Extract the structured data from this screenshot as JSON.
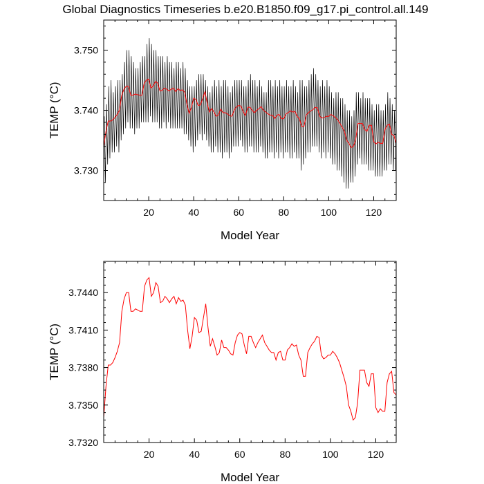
{
  "title": "Global Diagnostics Timeseries b.e20.B1850.f09_g17.pi_control.all.149",
  "colors": {
    "monthly": "#000000",
    "annual": "#ff0000"
  },
  "chart_data": [
    {
      "type": "line",
      "xlabel": "Model Year",
      "ylabel": "TEMP (°C)",
      "xlim": [
        0,
        130
      ],
      "ylim": [
        3.725,
        3.755
      ],
      "xticks": [
        20,
        40,
        60,
        80,
        100,
        120
      ],
      "xtick_labels": [
        "20",
        "40",
        "60",
        "80",
        "100",
        "120"
      ],
      "yticks": [
        3.73,
        3.74,
        3.75
      ],
      "ytick_labels": [
        "3.730",
        "3.740",
        "3.750"
      ],
      "series": [
        {
          "role": "monthly",
          "color": "#000000",
          "x": [
            0.5,
            1.5,
            2.5,
            3.5,
            4.5,
            5.5,
            6.5,
            7.5,
            8.5,
            9.5,
            10.5,
            11.5,
            12.5,
            13.5,
            14.5,
            15.5,
            16.5,
            17.5,
            18.5,
            19.5,
            20.5,
            21.5,
            22.5,
            23.5,
            24.5,
            25.5,
            26.5,
            27.5,
            28.5,
            29.5,
            30.5,
            31.5,
            32.5,
            33.5,
            34.5,
            35.5,
            36.5,
            37.5,
            38.5,
            39.5,
            40.5,
            41.5,
            42.5,
            43.5,
            44.5,
            45.5,
            46.5,
            47.5,
            48.5,
            49.5,
            50.5,
            51.5,
            52.5,
            53.5,
            54.5,
            55.5,
            56.5,
            57.5,
            58.5,
            59.5,
            60.5,
            61.5,
            62.5,
            63.5,
            64.5,
            65.5,
            66.5,
            67.5,
            68.5,
            69.5,
            70.5,
            71.5,
            72.5,
            73.5,
            74.5,
            75.5,
            76.5,
            77.5,
            78.5,
            79.5,
            80.5,
            81.5,
            82.5,
            83.5,
            84.5,
            85.5,
            86.5,
            87.5,
            88.5,
            89.5,
            90.5,
            91.5,
            92.5,
            93.5,
            94.5,
            95.5,
            96.5,
            97.5,
            98.5,
            99.5,
            100.5,
            101.5,
            102.5,
            103.5,
            104.5,
            105.5,
            106.5,
            107.5,
            108.5,
            109.5,
            110.5,
            111.5,
            112.5,
            113.5,
            114.5,
            115.5,
            116.5,
            117.5,
            118.5,
            119.5,
            120.5,
            121.5,
            122.5,
            123.5,
            124.5,
            125.5,
            126.5,
            127.5,
            128.5,
            129.5
          ],
          "ymax": [
            3.739,
            3.741,
            3.744,
            3.745,
            3.743,
            3.744,
            3.745,
            3.745,
            3.746,
            3.748,
            3.75,
            3.75,
            3.749,
            3.748,
            3.747,
            3.747,
            3.748,
            3.749,
            3.749,
            3.751,
            3.752,
            3.751,
            3.75,
            3.75,
            3.749,
            3.749,
            3.749,
            3.748,
            3.749,
            3.748,
            3.748,
            3.747,
            3.748,
            3.748,
            3.747,
            3.748,
            3.747,
            3.745,
            3.744,
            3.744,
            3.744,
            3.745,
            3.746,
            3.746,
            3.746,
            3.745,
            3.744,
            3.743,
            3.744,
            3.745,
            3.744,
            3.745,
            3.744,
            3.745,
            3.745,
            3.744,
            3.743,
            3.744,
            3.745,
            3.745,
            3.745,
            3.745,
            3.744,
            3.744,
            3.745,
            3.746,
            3.745,
            3.745,
            3.744,
            3.745,
            3.744,
            3.743,
            3.743,
            3.745,
            3.745,
            3.744,
            3.745,
            3.744,
            3.745,
            3.744,
            3.744,
            3.745,
            3.744,
            3.744,
            3.745,
            3.744,
            3.743,
            3.745,
            3.745,
            3.744,
            3.744,
            3.745,
            3.746,
            3.747,
            3.746,
            3.745,
            3.744,
            3.745,
            3.744,
            3.745,
            3.744,
            3.743,
            3.742,
            3.743,
            3.743,
            3.742,
            3.742,
            3.741,
            3.74,
            3.74,
            3.739,
            3.74,
            3.743,
            3.743,
            3.742,
            3.743,
            3.742,
            3.742,
            3.742,
            3.741,
            3.74,
            3.741,
            3.741,
            3.74,
            3.74,
            3.741,
            3.743,
            3.742,
            3.741,
            3.74
          ],
          "ymin": [
            3.728,
            3.731,
            3.732,
            3.733,
            3.733,
            3.734,
            3.733,
            3.735,
            3.736,
            3.737,
            3.738,
            3.737,
            3.737,
            3.736,
            3.737,
            3.737,
            3.738,
            3.738,
            3.738,
            3.738,
            3.739,
            3.738,
            3.738,
            3.738,
            3.737,
            3.737,
            3.738,
            3.737,
            3.738,
            3.737,
            3.737,
            3.737,
            3.737,
            3.737,
            3.737,
            3.736,
            3.736,
            3.735,
            3.734,
            3.733,
            3.734,
            3.735,
            3.736,
            3.735,
            3.736,
            3.735,
            3.734,
            3.733,
            3.733,
            3.734,
            3.733,
            3.733,
            3.732,
            3.733,
            3.733,
            3.732,
            3.733,
            3.734,
            3.734,
            3.734,
            3.735,
            3.734,
            3.733,
            3.733,
            3.734,
            3.734,
            3.733,
            3.733,
            3.733,
            3.734,
            3.733,
            3.732,
            3.732,
            3.733,
            3.733,
            3.732,
            3.733,
            3.732,
            3.733,
            3.732,
            3.733,
            3.733,
            3.732,
            3.732,
            3.733,
            3.732,
            3.732,
            3.73,
            3.731,
            3.732,
            3.733,
            3.733,
            3.734,
            3.734,
            3.734,
            3.733,
            3.732,
            3.733,
            3.732,
            3.733,
            3.732,
            3.731,
            3.731,
            3.73,
            3.73,
            3.729,
            3.728,
            3.727,
            3.727,
            3.728,
            3.728,
            3.729,
            3.731,
            3.732,
            3.731,
            3.731,
            3.731,
            3.73,
            3.73,
            3.73,
            3.729,
            3.729,
            3.729,
            3.729,
            3.73,
            3.73,
            3.731,
            3.731,
            3.73,
            3.73
          ]
        },
        {
          "role": "annual",
          "color": "#ff0000",
          "x": [
            0,
            1,
            2,
            3,
            4,
            5,
            6,
            7,
            8,
            9,
            10,
            11,
            12,
            13,
            14,
            15,
            16,
            17,
            18,
            19,
            20,
            21,
            22,
            23,
            24,
            25,
            26,
            27,
            28,
            29,
            30,
            31,
            32,
            33,
            34,
            35,
            36,
            37,
            38,
            39,
            40,
            41,
            42,
            43,
            44,
            45,
            46,
            47,
            48,
            49,
            50,
            51,
            52,
            53,
            54,
            55,
            56,
            57,
            58,
            59,
            60,
            61,
            62,
            63,
            64,
            65,
            66,
            67,
            68,
            69,
            70,
            71,
            72,
            73,
            74,
            75,
            76,
            77,
            78,
            79,
            80,
            81,
            82,
            83,
            84,
            85,
            86,
            87,
            88,
            89,
            90,
            91,
            92,
            93,
            94,
            95,
            96,
            97,
            98,
            99,
            100,
            101,
            102,
            103,
            104,
            105,
            106,
            107,
            108,
            109,
            110,
            111,
            112,
            113,
            114,
            115,
            116,
            117,
            118,
            119,
            120,
            121,
            122,
            123,
            124,
            125,
            126,
            127,
            128,
            129,
            130
          ],
          "values": [
            3.734,
            3.7365,
            3.7382,
            3.7382,
            3.7384,
            3.7388,
            3.7393,
            3.74,
            3.7425,
            3.7435,
            3.744,
            3.744,
            3.7425,
            3.7425,
            3.7427,
            3.7426,
            3.7425,
            3.7425,
            3.7445,
            3.745,
            3.7452,
            3.7437,
            3.744,
            3.7448,
            3.7445,
            3.7432,
            3.7433,
            3.7437,
            3.7435,
            3.7432,
            3.7435,
            3.7437,
            3.7431,
            3.7436,
            3.7433,
            3.7434,
            3.743,
            3.741,
            3.7395,
            3.7405,
            3.742,
            3.7418,
            3.7408,
            3.7409,
            3.742,
            3.7431,
            3.7412,
            3.7397,
            3.7403,
            3.7397,
            3.739,
            3.7392,
            3.7402,
            3.7396,
            3.7396,
            3.7394,
            3.7391,
            3.739,
            3.74,
            3.7406,
            3.7408,
            3.7407,
            3.7398,
            3.7391,
            3.7405,
            3.7405,
            3.74,
            3.7396,
            3.74,
            3.7403,
            3.7406,
            3.74,
            3.7397,
            3.7394,
            3.7392,
            3.7392,
            3.7386,
            3.7392,
            3.7393,
            3.7386,
            3.7386,
            3.7394,
            3.7396,
            3.7399,
            3.7397,
            3.7398,
            3.739,
            3.7386,
            3.7373,
            3.7373,
            3.7392,
            3.7396,
            3.7399,
            3.7401,
            3.7405,
            3.7404,
            3.739,
            3.7387,
            3.7388,
            3.739,
            3.739,
            3.7393,
            3.7391,
            3.7388,
            3.7384,
            3.7378,
            3.7372,
            3.7365,
            3.735,
            3.7345,
            3.7338,
            3.734,
            3.7352,
            3.7378,
            3.7378,
            3.7378,
            3.7368,
            3.7365,
            3.7375,
            3.7375,
            3.7348,
            3.7344,
            3.7347,
            3.7345,
            3.7345,
            3.7368,
            3.7375,
            3.7377,
            3.736,
            3.7358,
            3.7345
          ]
        }
      ]
    },
    {
      "type": "line",
      "xlabel": "Model Year",
      "ylabel": "TEMP (°C)",
      "xlim": [
        0,
        129
      ],
      "ylim": [
        3.732,
        3.7465
      ],
      "xticks": [
        20,
        40,
        60,
        80,
        100,
        120
      ],
      "xtick_labels": [
        "20",
        "40",
        "60",
        "80",
        "100",
        "120"
      ],
      "yticks": [
        3.732,
        3.735,
        3.738,
        3.741,
        3.744
      ],
      "ytick_labels": [
        "3.7320",
        "3.7350",
        "3.7380",
        "3.7410",
        "3.7440"
      ],
      "series": [
        {
          "role": "annual",
          "color": "#ff0000",
          "x": [
            0,
            1,
            2,
            3,
            4,
            5,
            6,
            7,
            8,
            9,
            10,
            11,
            12,
            13,
            14,
            15,
            16,
            17,
            18,
            19,
            20,
            21,
            22,
            23,
            24,
            25,
            26,
            27,
            28,
            29,
            30,
            31,
            32,
            33,
            34,
            35,
            36,
            37,
            38,
            39,
            40,
            41,
            42,
            43,
            44,
            45,
            46,
            47,
            48,
            49,
            50,
            51,
            52,
            53,
            54,
            55,
            56,
            57,
            58,
            59,
            60,
            61,
            62,
            63,
            64,
            65,
            66,
            67,
            68,
            69,
            70,
            71,
            72,
            73,
            74,
            75,
            76,
            77,
            78,
            79,
            80,
            81,
            82,
            83,
            84,
            85,
            86,
            87,
            88,
            89,
            90,
            91,
            92,
            93,
            94,
            95,
            96,
            97,
            98,
            99,
            100,
            101,
            102,
            103,
            104,
            105,
            106,
            107,
            108,
            109,
            110,
            111,
            112,
            113,
            114,
            115,
            116,
            117,
            118,
            119,
            120,
            121,
            122,
            123,
            124,
            125,
            126,
            127,
            128,
            129
          ],
          "values": [
            3.734,
            3.7365,
            3.7382,
            3.7382,
            3.7384,
            3.7388,
            3.7393,
            3.74,
            3.7425,
            3.7435,
            3.744,
            3.744,
            3.7425,
            3.7425,
            3.7427,
            3.7426,
            3.7425,
            3.7425,
            3.7445,
            3.745,
            3.7452,
            3.7437,
            3.744,
            3.7448,
            3.7445,
            3.7432,
            3.7433,
            3.7437,
            3.7435,
            3.7432,
            3.7435,
            3.7437,
            3.7431,
            3.7436,
            3.7433,
            3.7434,
            3.743,
            3.741,
            3.7395,
            3.7405,
            3.742,
            3.7418,
            3.7408,
            3.7409,
            3.742,
            3.7431,
            3.7412,
            3.7397,
            3.7403,
            3.7397,
            3.739,
            3.7392,
            3.7402,
            3.7396,
            3.7396,
            3.7394,
            3.7391,
            3.739,
            3.74,
            3.7406,
            3.7408,
            3.7407,
            3.7398,
            3.7391,
            3.7405,
            3.7405,
            3.74,
            3.7396,
            3.74,
            3.7403,
            3.7406,
            3.74,
            3.7397,
            3.7394,
            3.7392,
            3.7392,
            3.7386,
            3.7392,
            3.7393,
            3.7386,
            3.7386,
            3.7394,
            3.7396,
            3.7399,
            3.7397,
            3.7398,
            3.739,
            3.7386,
            3.7373,
            3.7373,
            3.7392,
            3.7396,
            3.7399,
            3.7401,
            3.7405,
            3.7404,
            3.739,
            3.7387,
            3.7388,
            3.739,
            3.739,
            3.7393,
            3.7391,
            3.7388,
            3.7384,
            3.7378,
            3.7372,
            3.7365,
            3.735,
            3.7345,
            3.7338,
            3.734,
            3.7352,
            3.7378,
            3.7378,
            3.7378,
            3.7368,
            3.7365,
            3.7375,
            3.7375,
            3.7348,
            3.7344,
            3.7347,
            3.7345,
            3.7345,
            3.7368,
            3.7375,
            3.7377,
            3.736,
            3.7358
          ]
        }
      ]
    }
  ]
}
